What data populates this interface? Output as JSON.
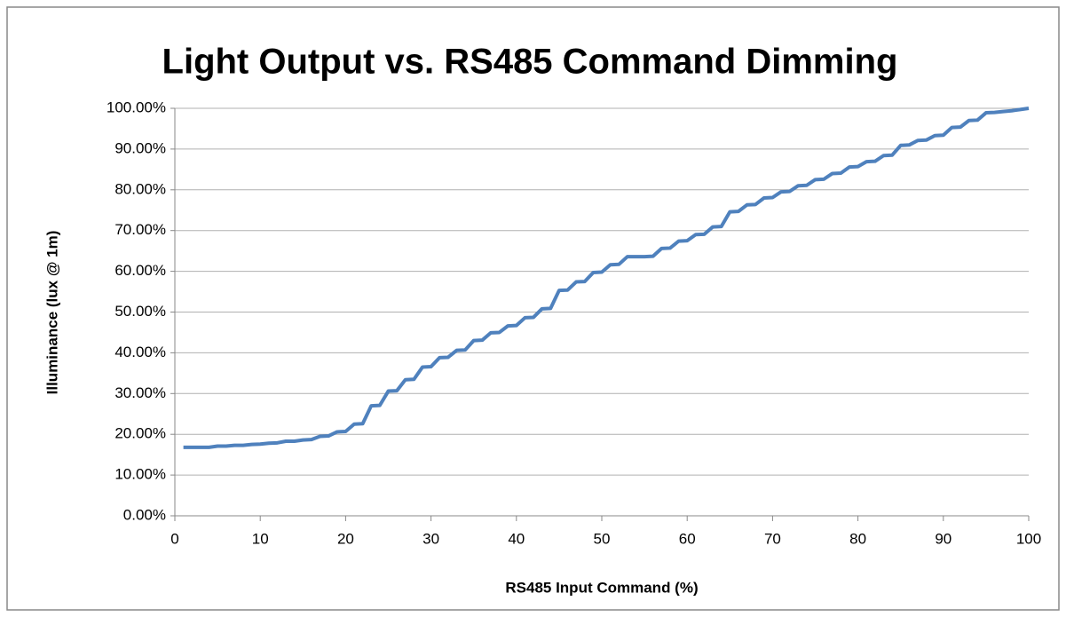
{
  "chart_data": {
    "type": "line",
    "title": "Light Output vs.  RS485 Command Dimming",
    "x_label": "RS485 Input Command (%)",
    "y_label": "Illuminance (lux @ 1m)",
    "x": [
      1,
      2,
      3,
      4,
      5,
      6,
      7,
      8,
      9,
      10,
      11,
      12,
      13,
      14,
      15,
      16,
      17,
      18,
      19,
      20,
      21,
      22,
      23,
      24,
      25,
      26,
      27,
      28,
      29,
      30,
      31,
      32,
      33,
      34,
      35,
      36,
      37,
      38,
      39,
      40,
      41,
      42,
      43,
      44,
      45,
      46,
      47,
      48,
      49,
      50,
      51,
      52,
      53,
      54,
      55,
      56,
      57,
      58,
      59,
      60,
      61,
      62,
      63,
      64,
      65,
      66,
      67,
      68,
      69,
      70,
      71,
      72,
      73,
      74,
      75,
      76,
      77,
      78,
      79,
      80,
      81,
      82,
      83,
      84,
      85,
      86,
      87,
      88,
      89,
      90,
      91,
      92,
      93,
      94,
      95,
      96,
      97,
      98,
      99,
      100
    ],
    "series": [
      {
        "name": "Illuminance",
        "color": "#4f81bd",
        "values": [
          16.8,
          16.8,
          16.8,
          16.8,
          17.1,
          17.1,
          17.3,
          17.3,
          17.5,
          17.6,
          17.8,
          17.9,
          18.3,
          18.3,
          18.6,
          18.7,
          19.5,
          19.6,
          20.6,
          20.7,
          22.5,
          22.6,
          27,
          27.1,
          30.6,
          30.7,
          33.4,
          33.5,
          36.5,
          36.6,
          38.8,
          38.9,
          40.6,
          40.7,
          43,
          43.1,
          44.9,
          45,
          46.6,
          46.7,
          48.6,
          48.7,
          50.8,
          50.9,
          55.3,
          55.4,
          57.4,
          57.5,
          59.7,
          59.8,
          61.6,
          61.7,
          63.6,
          63.6,
          63.6,
          63.7,
          65.6,
          65.7,
          67.4,
          67.5,
          69,
          69.1,
          70.9,
          71,
          74.6,
          74.7,
          76.3,
          76.4,
          78,
          78.1,
          79.5,
          79.6,
          81,
          81.1,
          82.5,
          82.6,
          84,
          84.1,
          85.6,
          85.7,
          86.9,
          87,
          88.4,
          88.5,
          90.9,
          91,
          92.1,
          92.2,
          93.3,
          93.4,
          95.3,
          95.4,
          97,
          97.1,
          98.9,
          99,
          99.2,
          99.4,
          99.7,
          100
        ]
      }
    ],
    "xlim": [
      0,
      100
    ],
    "xticks": [
      0,
      10,
      20,
      30,
      40,
      50,
      60,
      70,
      80,
      90,
      100
    ],
    "ylim": [
      0,
      100
    ],
    "yticks": [
      {
        "value": 0,
        "label": "0.00%"
      },
      {
        "value": 10,
        "label": "10.00%"
      },
      {
        "value": 20,
        "label": "20.00%"
      },
      {
        "value": 30,
        "label": "30.00%"
      },
      {
        "value": 40,
        "label": "40.00%"
      },
      {
        "value": 50,
        "label": "50.00%"
      },
      {
        "value": 60,
        "label": "60.00%"
      },
      {
        "value": 70,
        "label": "70.00%"
      },
      {
        "value": 80,
        "label": "80.00%"
      },
      {
        "value": 90,
        "label": "90.00%"
      },
      {
        "value": 100,
        "label": "100.00%"
      }
    ],
    "grid": true
  }
}
